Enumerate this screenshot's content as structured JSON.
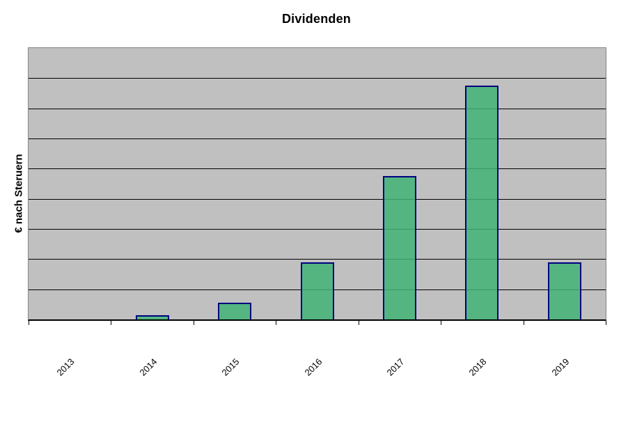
{
  "chart_data": {
    "type": "bar",
    "title": "Dividenden",
    "xlabel": "",
    "ylabel": "€ nach Steruern",
    "categories": [
      "2013",
      "2014",
      "2015",
      "2016",
      "2017",
      "2018",
      "2019"
    ],
    "values": [
      0,
      0.15,
      0.55,
      1.9,
      4.75,
      7.75,
      1.9
    ],
    "value_units": "relative gridline intervals (y-axis shows no numeric tick labels)",
    "ylim": [
      0,
      9
    ],
    "gridlines": {
      "horizontal": true,
      "interval_count": 9
    },
    "legend": "none",
    "x_tick_label_rotation_deg": 45,
    "bar_appearance": {
      "fill": "#41B375",
      "fill_opacity": 0.85,
      "border": "#000080"
    },
    "colors": {
      "plot_background": "#C0C0C0",
      "gridline": "#000000",
      "plot_border": "#848484",
      "axis_line": "#000000",
      "page_background": "#FFFFFF",
      "text": "#000000"
    }
  }
}
